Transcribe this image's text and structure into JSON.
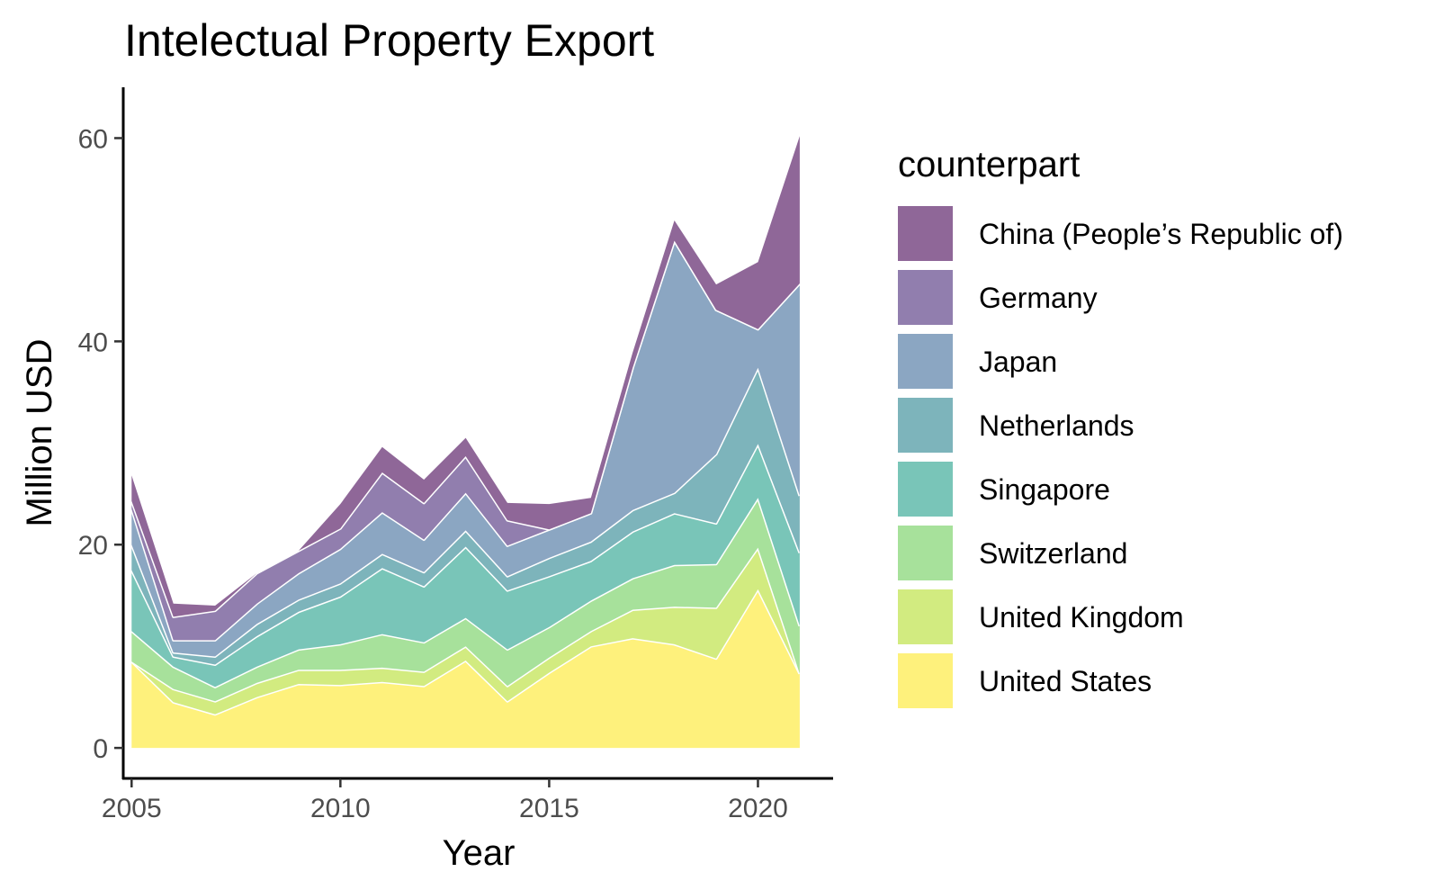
{
  "chart_data": {
    "type": "area",
    "stacked": true,
    "title": "Intelectual Property Export",
    "xlabel": "Year",
    "ylabel": "Million USD",
    "xlim": [
      2004.8,
      2021.8
    ],
    "ylim": [
      -3,
      65
    ],
    "x_ticks": [
      2005,
      2010,
      2015,
      2020
    ],
    "y_ticks": [
      0,
      20,
      40,
      60
    ],
    "legend": {
      "title": "counterpart",
      "position": "right"
    },
    "grid": false,
    "x": [
      2005,
      2006,
      2007,
      2008,
      2009,
      2010,
      2011,
      2012,
      2013,
      2014,
      2015,
      2016,
      2017,
      2018,
      2019,
      2020,
      2021
    ],
    "series": [
      {
        "name": "United States",
        "color": "#FDE725",
        "values": [
          8.5,
          4.5,
          3.3,
          5.0,
          6.3,
          6.2,
          6.5,
          6.1,
          8.6,
          4.6,
          7.4,
          10.0,
          10.8,
          10.2,
          8.8,
          15.6,
          7.3
        ]
      },
      {
        "name": "United Kingdom",
        "color": "#B4DE2C",
        "values": [
          0.0,
          1.3,
          1.3,
          1.4,
          1.4,
          1.5,
          1.4,
          1.4,
          1.4,
          1.5,
          1.5,
          1.5,
          2.8,
          3.7,
          5.0,
          4.1,
          0.0
        ]
      },
      {
        "name": "Switzerland",
        "color": "#6DCD59",
        "values": [
          3.0,
          2.2,
          1.4,
          1.6,
          2.0,
          2.5,
          3.3,
          2.9,
          2.8,
          3.6,
          3.0,
          3.0,
          3.1,
          4.1,
          4.3,
          4.9,
          4.7
        ]
      },
      {
        "name": "Singapore",
        "color": "#1F9E89",
        "values": [
          6.0,
          1.0,
          2.2,
          3.0,
          3.7,
          4.7,
          6.5,
          5.5,
          7.0,
          5.8,
          5.0,
          3.9,
          4.6,
          5.1,
          4.0,
          5.3,
          7.2
        ]
      },
      {
        "name": "Netherlands",
        "color": "#26828E",
        "values": [
          2.5,
          0.4,
          0.8,
          1.2,
          1.2,
          1.3,
          1.4,
          1.4,
          1.6,
          1.4,
          1.8,
          1.9,
          2.1,
          2.0,
          6.8,
          7.5,
          5.6
        ]
      },
      {
        "name": "Japan",
        "color": "#3E6A99",
        "values": [
          3.5,
          1.2,
          1.6,
          2.0,
          2.6,
          3.4,
          4.1,
          3.2,
          3.7,
          3.0,
          2.8,
          2.8,
          14.0,
          24.8,
          14.2,
          3.8,
          20.9
        ]
      },
      {
        "name": "Germany",
        "color": "#482878",
        "values": [
          0.8,
          2.3,
          2.9,
          3.0,
          2.2,
          2.0,
          3.9,
          3.6,
          3.6,
          2.5,
          0.0,
          0.0,
          0.0,
          0.0,
          0.0,
          0.0,
          0.0
        ]
      },
      {
        "name": "China (People’s Republic of)",
        "color": "#440154",
        "values": [
          2.5,
          1.3,
          0.5,
          0.0,
          0.0,
          2.4,
          2.5,
          2.3,
          1.8,
          1.7,
          2.5,
          1.5,
          1.5,
          2.0,
          2.5,
          6.6,
          14.5
        ]
      }
    ],
    "alpha": 0.6
  }
}
